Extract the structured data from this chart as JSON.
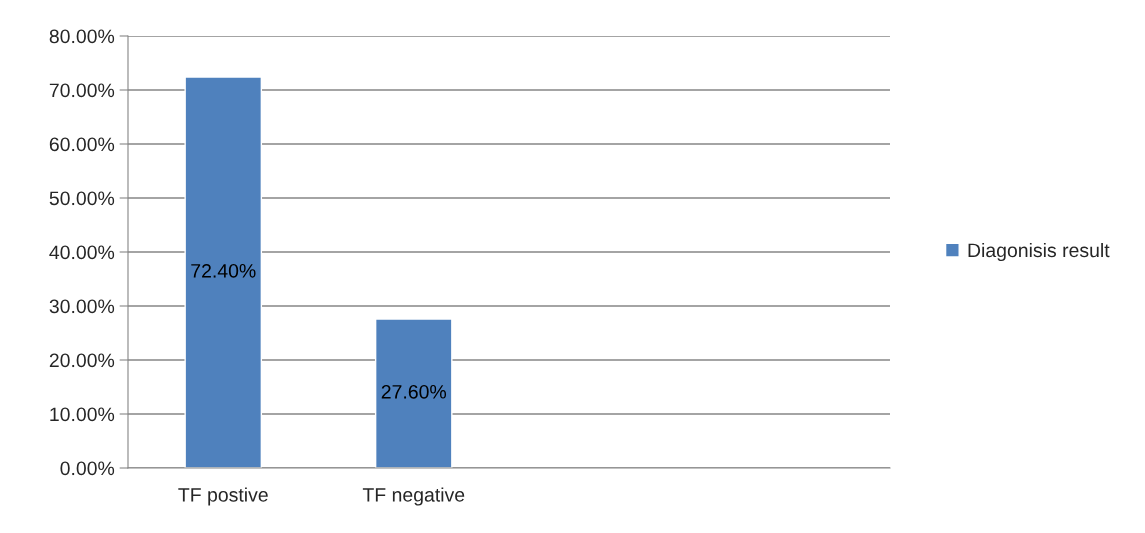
{
  "chart_data": {
    "type": "bar",
    "categories": [
      "TF postive",
      "TF negative",
      null,
      null
    ],
    "series": [
      {
        "name": "Diagonisis result",
        "color": "#4f81bd",
        "values": [
          72.4,
          27.6,
          null,
          null
        ],
        "value_labels": [
          "72.40%",
          "27.60%",
          null,
          null
        ]
      }
    ],
    "ylim": [
      0,
      80
    ],
    "yticks": [
      {
        "value": 0,
        "label": "0.00%"
      },
      {
        "value": 10,
        "label": "10.00%"
      },
      {
        "value": 20,
        "label": "20.00%"
      },
      {
        "value": 30,
        "label": "30.00%"
      },
      {
        "value": 40,
        "label": "40.00%"
      },
      {
        "value": 50,
        "label": "50.00%"
      },
      {
        "value": 60,
        "label": "60.00%"
      },
      {
        "value": 70,
        "label": "70.00%"
      },
      {
        "value": 80,
        "label": "80.00%"
      }
    ],
    "grid": "y",
    "legend": "right"
  }
}
